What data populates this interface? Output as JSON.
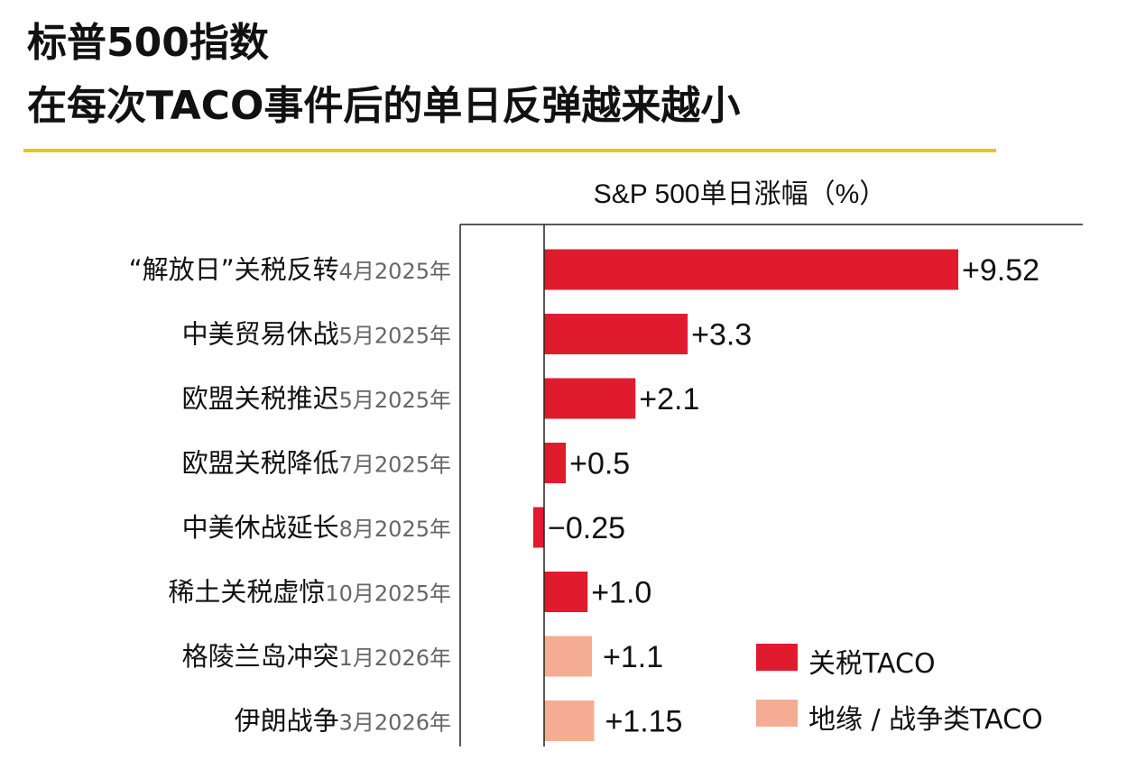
{
  "title": {
    "line1": "标普500指数",
    "line2": "在每次TACO事件后的单日反弹越来越小"
  },
  "colors": {
    "accent_rule": "#f2c21b",
    "tariff": "#e11b2e",
    "geo": "#f4ad93",
    "text": "#111111",
    "date_text": "#666666"
  },
  "chart_data": {
    "type": "bar",
    "orientation": "horizontal",
    "title": "标普500指数 在每次TACO事件后的单日反弹越来越小",
    "xlabel": "S&P 500单日涨幅（%）",
    "ylabel": "",
    "xlim": [
      -0.25,
      9.52
    ],
    "categories": [
      {
        "name": "“解放日”关税反转",
        "date": "4月2025年",
        "value": 9.52,
        "label": "+9.52",
        "group": "tariff"
      },
      {
        "name": "中美贸易休战",
        "date": "5月2025年",
        "value": 3.3,
        "label": "+3.3",
        "group": "tariff"
      },
      {
        "name": "欧盟关税推迟",
        "date": "5月2025年",
        "value": 2.1,
        "label": "+2.1",
        "group": "tariff"
      },
      {
        "name": "欧盟关税降低",
        "date": "7月2025年",
        "value": 0.5,
        "label": "+0.5",
        "group": "tariff"
      },
      {
        "name": "中美休战延长",
        "date": "8月2025年",
        "value": -0.25,
        "label": "−0.25",
        "group": "tariff"
      },
      {
        "name": "稀土关税虚惊",
        "date": "10月2025年",
        "value": 1.0,
        "label": "+1.0",
        "group": "tariff"
      },
      {
        "name": "格陵兰岛冲突",
        "date": "1月2026年",
        "value": 1.1,
        "label": "+1.1",
        "group": "geo"
      },
      {
        "name": "伊朗战争",
        "date": "3月2026年",
        "value": 1.15,
        "label": "+1.15",
        "group": "geo"
      }
    ],
    "legend": [
      {
        "key": "tariff",
        "label": "关税TACO"
      },
      {
        "key": "geo",
        "label": "地缘 / 战争类TACO"
      }
    ],
    "legend_position": "bottom-right"
  }
}
